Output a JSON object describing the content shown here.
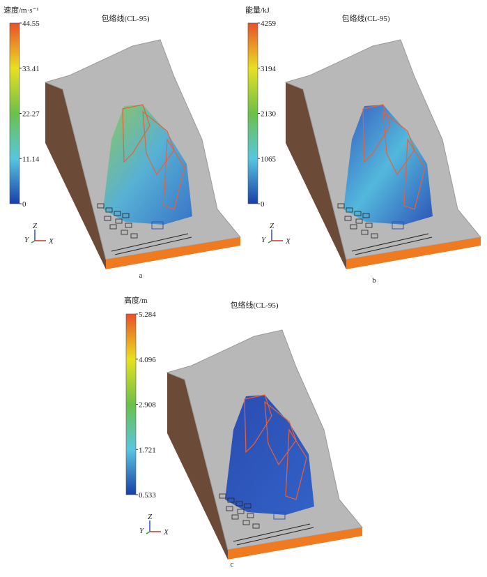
{
  "panels": [
    {
      "label": "a",
      "colorbar": {
        "title": "速度/m·s⁻¹",
        "ticks": [
          "44.55",
          "33.41",
          "22.27",
          "11.14",
          "0"
        ]
      },
      "envelope": "包络线(CL-95)",
      "axes": {
        "z": "Z",
        "y": "Y",
        "x": "X"
      }
    },
    {
      "label": "b",
      "colorbar": {
        "title": "能量/kJ",
        "ticks": [
          "4259",
          "3194",
          "2130",
          "1065",
          "0"
        ]
      },
      "envelope": "包络线(CL-95)",
      "axes": {
        "z": "Z",
        "y": "Y",
        "x": "X"
      }
    },
    {
      "label": "c",
      "colorbar": {
        "title": "高度/m",
        "ticks": [
          "5.284",
          "4.096",
          "2.908",
          "1.721",
          "0.533"
        ]
      },
      "envelope": "包络线(CL-95)",
      "axes": {
        "z": "Z",
        "y": "Y",
        "x": "X"
      }
    }
  ]
}
